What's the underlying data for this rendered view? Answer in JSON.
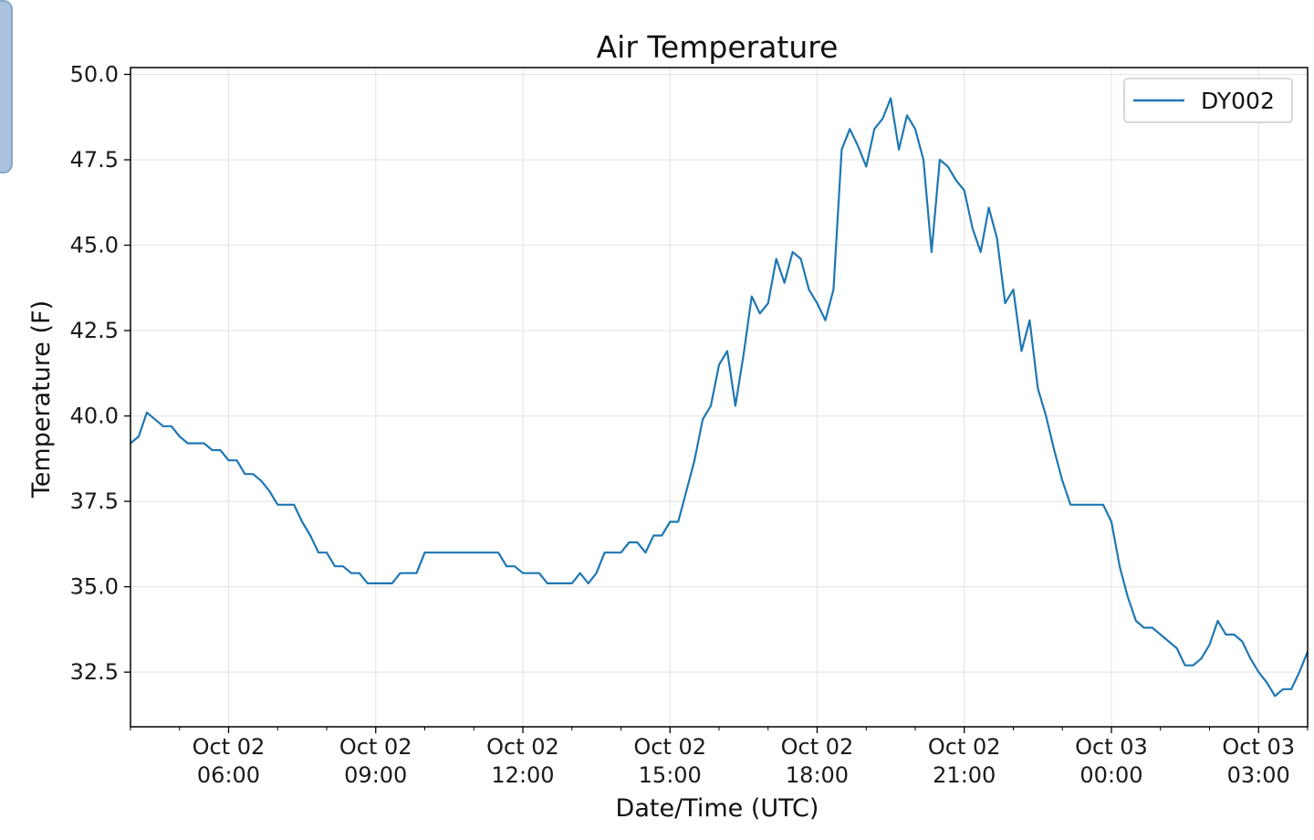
{
  "chart_data": {
    "type": "line",
    "title": "Air Temperature",
    "xlabel": "Date/Time (UTC)",
    "ylabel": "Temperature (F)",
    "ylim": [
      30.9,
      50.2
    ],
    "yticks": [
      32.5,
      35.0,
      37.5,
      40.0,
      42.5,
      45.0,
      47.5,
      50.0
    ],
    "ytick_labels": [
      "32.5",
      "35.0",
      "37.5",
      "40.0",
      "42.5",
      "45.0",
      "47.5",
      "50.0"
    ],
    "xlim": [
      "2021-10-02T04:00",
      "2021-10-03T04:00"
    ],
    "xticks": [
      {
        "t": "2021-10-02T06:00",
        "line1": "Oct 02",
        "line2": "06:00"
      },
      {
        "t": "2021-10-02T09:00",
        "line1": "Oct 02",
        "line2": "09:00"
      },
      {
        "t": "2021-10-02T12:00",
        "line1": "Oct 02",
        "line2": "12:00"
      },
      {
        "t": "2021-10-02T15:00",
        "line1": "Oct 02",
        "line2": "15:00"
      },
      {
        "t": "2021-10-02T18:00",
        "line1": "Oct 02",
        "line2": "18:00"
      },
      {
        "t": "2021-10-02T21:00",
        "line1": "Oct 02",
        "line2": "21:00"
      },
      {
        "t": "2021-10-03T00:00",
        "line1": "Oct 03",
        "line2": "00:00"
      },
      {
        "t": "2021-10-03T03:00",
        "line1": "Oct 03",
        "line2": "03:00"
      }
    ],
    "grid": true,
    "legend_position": "top-right",
    "series": [
      {
        "name": "DY002",
        "color": "#1f77b4",
        "points": [
          [
            "2021-10-02T04:00",
            39.2
          ],
          [
            "2021-10-02T04:10",
            39.4
          ],
          [
            "2021-10-02T04:20",
            40.1
          ],
          [
            "2021-10-02T04:30",
            39.9
          ],
          [
            "2021-10-02T04:40",
            39.7
          ],
          [
            "2021-10-02T04:50",
            39.7
          ],
          [
            "2021-10-02T05:00",
            39.4
          ],
          [
            "2021-10-02T05:10",
            39.2
          ],
          [
            "2021-10-02T05:20",
            39.2
          ],
          [
            "2021-10-02T05:30",
            39.2
          ],
          [
            "2021-10-02T05:40",
            39.0
          ],
          [
            "2021-10-02T05:50",
            39.0
          ],
          [
            "2021-10-02T06:00",
            38.7
          ],
          [
            "2021-10-02T06:10",
            38.7
          ],
          [
            "2021-10-02T06:20",
            38.3
          ],
          [
            "2021-10-02T06:30",
            38.3
          ],
          [
            "2021-10-02T06:40",
            38.1
          ],
          [
            "2021-10-02T06:50",
            37.8
          ],
          [
            "2021-10-02T07:00",
            37.4
          ],
          [
            "2021-10-02T07:10",
            37.4
          ],
          [
            "2021-10-02T07:20",
            37.4
          ],
          [
            "2021-10-02T07:30",
            36.9
          ],
          [
            "2021-10-02T07:40",
            36.5
          ],
          [
            "2021-10-02T07:50",
            36.0
          ],
          [
            "2021-10-02T08:00",
            36.0
          ],
          [
            "2021-10-02T08:10",
            35.6
          ],
          [
            "2021-10-02T08:20",
            35.6
          ],
          [
            "2021-10-02T08:30",
            35.4
          ],
          [
            "2021-10-02T08:40",
            35.4
          ],
          [
            "2021-10-02T08:50",
            35.1
          ],
          [
            "2021-10-02T09:00",
            35.1
          ],
          [
            "2021-10-02T09:10",
            35.1
          ],
          [
            "2021-10-02T09:20",
            35.1
          ],
          [
            "2021-10-02T09:30",
            35.4
          ],
          [
            "2021-10-02T09:40",
            35.4
          ],
          [
            "2021-10-02T09:50",
            35.4
          ],
          [
            "2021-10-02T10:00",
            36.0
          ],
          [
            "2021-10-02T10:10",
            36.0
          ],
          [
            "2021-10-02T10:20",
            36.0
          ],
          [
            "2021-10-02T10:30",
            36.0
          ],
          [
            "2021-10-02T10:40",
            36.0
          ],
          [
            "2021-10-02T10:50",
            36.0
          ],
          [
            "2021-10-02T11:00",
            36.0
          ],
          [
            "2021-10-02T11:10",
            36.0
          ],
          [
            "2021-10-02T11:20",
            36.0
          ],
          [
            "2021-10-02T11:30",
            36.0
          ],
          [
            "2021-10-02T11:40",
            35.6
          ],
          [
            "2021-10-02T11:50",
            35.6
          ],
          [
            "2021-10-02T12:00",
            35.4
          ],
          [
            "2021-10-02T12:10",
            35.4
          ],
          [
            "2021-10-02T12:20",
            35.4
          ],
          [
            "2021-10-02T12:30",
            35.1
          ],
          [
            "2021-10-02T12:40",
            35.1
          ],
          [
            "2021-10-02T12:50",
            35.1
          ],
          [
            "2021-10-02T13:00",
            35.1
          ],
          [
            "2021-10-02T13:10",
            35.4
          ],
          [
            "2021-10-02T13:20",
            35.1
          ],
          [
            "2021-10-02T13:30",
            35.4
          ],
          [
            "2021-10-02T13:40",
            36.0
          ],
          [
            "2021-10-02T13:50",
            36.0
          ],
          [
            "2021-10-02T14:00",
            36.0
          ],
          [
            "2021-10-02T14:10",
            36.3
          ],
          [
            "2021-10-02T14:20",
            36.3
          ],
          [
            "2021-10-02T14:30",
            36.0
          ],
          [
            "2021-10-02T14:40",
            36.5
          ],
          [
            "2021-10-02T14:50",
            36.5
          ],
          [
            "2021-10-02T15:00",
            36.9
          ],
          [
            "2021-10-02T15:10",
            36.9
          ],
          [
            "2021-10-02T15:20",
            37.8
          ],
          [
            "2021-10-02T15:30",
            38.7
          ],
          [
            "2021-10-02T15:40",
            39.9
          ],
          [
            "2021-10-02T15:50",
            40.3
          ],
          [
            "2021-10-02T16:00",
            41.5
          ],
          [
            "2021-10-02T16:10",
            41.9
          ],
          [
            "2021-10-02T16:20",
            40.3
          ],
          [
            "2021-10-02T16:30",
            41.8
          ],
          [
            "2021-10-02T16:40",
            43.5
          ],
          [
            "2021-10-02T16:50",
            43.0
          ],
          [
            "2021-10-02T17:00",
            43.3
          ],
          [
            "2021-10-02T17:10",
            44.6
          ],
          [
            "2021-10-02T17:20",
            43.9
          ],
          [
            "2021-10-02T17:30",
            44.8
          ],
          [
            "2021-10-02T17:40",
            44.6
          ],
          [
            "2021-10-02T17:50",
            43.7
          ],
          [
            "2021-10-02T18:00",
            43.3
          ],
          [
            "2021-10-02T18:10",
            42.8
          ],
          [
            "2021-10-02T18:20",
            43.7
          ],
          [
            "2021-10-02T18:30",
            47.8
          ],
          [
            "2021-10-02T18:40",
            48.4
          ],
          [
            "2021-10-02T18:50",
            47.9
          ],
          [
            "2021-10-02T19:00",
            47.3
          ],
          [
            "2021-10-02T19:10",
            48.4
          ],
          [
            "2021-10-02T19:20",
            48.7
          ],
          [
            "2021-10-02T19:30",
            49.3
          ],
          [
            "2021-10-02T19:40",
            47.8
          ],
          [
            "2021-10-02T19:50",
            48.8
          ],
          [
            "2021-10-02T20:00",
            48.4
          ],
          [
            "2021-10-02T20:10",
            47.5
          ],
          [
            "2021-10-02T20:20",
            44.8
          ],
          [
            "2021-10-02T20:30",
            47.5
          ],
          [
            "2021-10-02T20:40",
            47.3
          ],
          [
            "2021-10-02T20:50",
            46.9
          ],
          [
            "2021-10-02T21:00",
            46.6
          ],
          [
            "2021-10-02T21:10",
            45.5
          ],
          [
            "2021-10-02T21:20",
            44.8
          ],
          [
            "2021-10-02T21:30",
            46.1
          ],
          [
            "2021-10-02T21:40",
            45.2
          ],
          [
            "2021-10-02T21:50",
            43.3
          ],
          [
            "2021-10-02T22:00",
            43.7
          ],
          [
            "2021-10-02T22:10",
            41.9
          ],
          [
            "2021-10-02T22:20",
            42.8
          ],
          [
            "2021-10-02T22:30",
            40.8
          ],
          [
            "2021-10-02T22:40",
            40.0
          ],
          [
            "2021-10-02T22:50",
            39.0
          ],
          [
            "2021-10-02T23:00",
            38.1
          ],
          [
            "2021-10-02T23:10",
            37.4
          ],
          [
            "2021-10-02T23:20",
            37.4
          ],
          [
            "2021-10-02T23:30",
            37.4
          ],
          [
            "2021-10-02T23:40",
            37.4
          ],
          [
            "2021-10-02T23:50",
            37.4
          ],
          [
            "2021-10-03T00:00",
            36.9
          ],
          [
            "2021-10-03T00:10",
            35.6
          ],
          [
            "2021-10-03T00:20",
            34.7
          ],
          [
            "2021-10-03T00:30",
            34.0
          ],
          [
            "2021-10-03T00:40",
            33.8
          ],
          [
            "2021-10-03T00:50",
            33.8
          ],
          [
            "2021-10-03T01:00",
            33.6
          ],
          [
            "2021-10-03T01:10",
            33.4
          ],
          [
            "2021-10-03T01:20",
            33.2
          ],
          [
            "2021-10-03T01:30",
            32.7
          ],
          [
            "2021-10-03T01:40",
            32.7
          ],
          [
            "2021-10-03T01:50",
            32.9
          ],
          [
            "2021-10-03T02:00",
            33.3
          ],
          [
            "2021-10-03T02:10",
            34.0
          ],
          [
            "2021-10-03T02:20",
            33.6
          ],
          [
            "2021-10-03T02:30",
            33.6
          ],
          [
            "2021-10-03T02:40",
            33.4
          ],
          [
            "2021-10-03T02:50",
            32.9
          ],
          [
            "2021-10-03T03:00",
            32.5
          ],
          [
            "2021-10-03T03:10",
            32.2
          ],
          [
            "2021-10-03T03:20",
            31.8
          ],
          [
            "2021-10-03T03:30",
            32.0
          ],
          [
            "2021-10-03T03:40",
            32.0
          ],
          [
            "2021-10-03T03:50",
            32.5
          ],
          [
            "2021-10-03T04:00",
            33.1
          ]
        ]
      }
    ]
  }
}
